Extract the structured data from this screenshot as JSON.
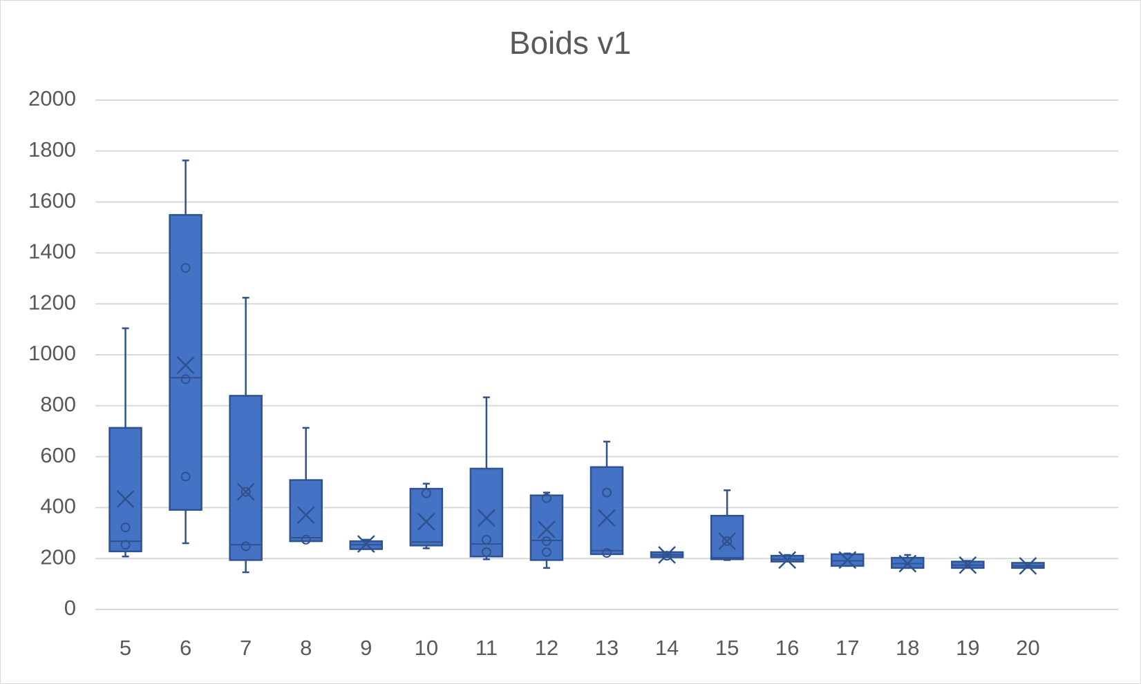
{
  "chart_data": {
    "type": "box",
    "title": "Boids v1",
    "categories": [
      "5",
      "6",
      "7",
      "8",
      "9",
      "10",
      "11",
      "12",
      "13",
      "14",
      "15",
      "16",
      "17",
      "18",
      "19",
      "20"
    ],
    "color": "#4472c4",
    "edge_color": "#2f528f",
    "ylim": [
      0,
      2000
    ],
    "yticks": [
      0,
      200,
      400,
      600,
      800,
      1000,
      1200,
      1400,
      1600,
      1800,
      2000
    ],
    "grid": true,
    "boxes": [
      {
        "min": 208,
        "q1": 228,
        "median": 268,
        "q3": 713,
        "max": 1104,
        "mean": 434,
        "points": [
          322,
          254
        ]
      },
      {
        "min": 260,
        "q1": 391,
        "median": 910,
        "q3": 1549,
        "max": 1763,
        "mean": 959,
        "points": [
          1341,
          904,
          522
        ]
      },
      {
        "min": 146,
        "q1": 194,
        "median": 254,
        "q3": 839,
        "max": 1224,
        "mean": 462,
        "points": [
          462,
          248
        ]
      },
      {
        "min": 268,
        "q1": 268,
        "median": 282,
        "q3": 508,
        "max": 713,
        "mean": 371,
        "points": [
          274
        ]
      },
      {
        "min": 237,
        "q1": 237,
        "median": 254,
        "q3": 268,
        "max": 274,
        "mean": 257,
        "points": []
      },
      {
        "min": 240,
        "q1": 251,
        "median": 265,
        "q3": 474,
        "max": 494,
        "mean": 345,
        "points": [
          456
        ]
      },
      {
        "min": 197,
        "q1": 208,
        "median": 257,
        "q3": 553,
        "max": 833,
        "mean": 359,
        "points": [
          274,
          225
        ]
      },
      {
        "min": 163,
        "q1": 194,
        "median": 271,
        "q3": 448,
        "max": 459,
        "mean": 314,
        "points": [
          437,
          268,
          225
        ]
      },
      {
        "min": 217,
        "q1": 217,
        "median": 231,
        "q3": 559,
        "max": 659,
        "mean": 359,
        "points": [
          459,
          222
        ]
      },
      {
        "min": 205,
        "q1": 205,
        "median": 214,
        "q3": 225,
        "max": 225,
        "mean": 214,
        "points": [
          211
        ]
      },
      {
        "min": 194,
        "q1": 197,
        "median": 203,
        "q3": 368,
        "max": 468,
        "mean": 268,
        "points": [
          268
        ]
      },
      {
        "min": 188,
        "q1": 188,
        "median": 197,
        "q3": 211,
        "max": 214,
        "mean": 194,
        "points": []
      },
      {
        "min": 171,
        "q1": 171,
        "median": 191,
        "q3": 217,
        "max": 220,
        "mean": 194,
        "points": []
      },
      {
        "min": 163,
        "q1": 163,
        "median": 180,
        "q3": 203,
        "max": 214,
        "mean": 180,
        "points": []
      },
      {
        "min": 163,
        "q1": 163,
        "median": 174,
        "q3": 188,
        "max": 191,
        "mean": 174,
        "points": []
      },
      {
        "min": 163,
        "q1": 163,
        "median": 171,
        "q3": 183,
        "max": 183,
        "mean": 171,
        "points": []
      }
    ]
  }
}
